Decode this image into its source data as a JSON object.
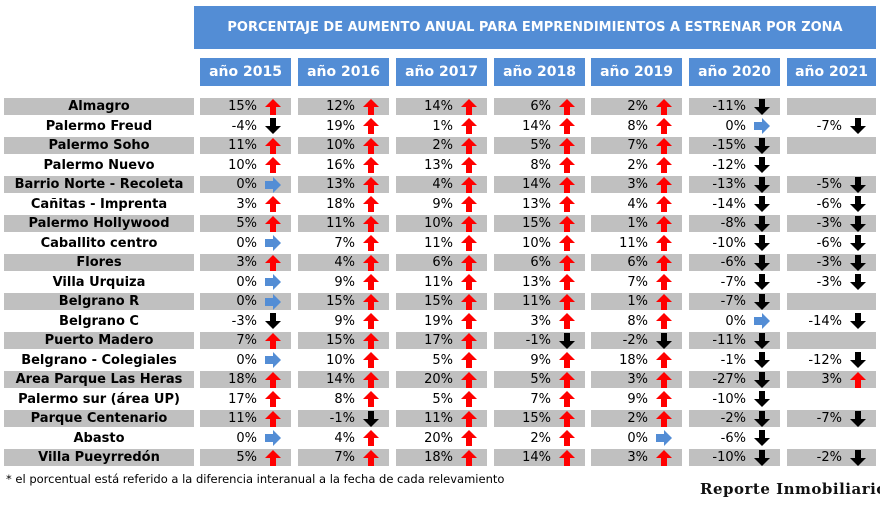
{
  "title": "PORCENTAJE DE AUMENTO ANUAL PARA EMPRENDIMIENTOS A ESTRENAR POR ZONA",
  "colors": {
    "header_bg": "#538dd5",
    "row_shade": "#c0c0c0",
    "up_arrow": "#ff0000",
    "down_arrow": "#000000",
    "flat_arrow": "#538dd5"
  },
  "years": [
    "año 2015",
    "año 2016",
    "año 2017",
    "año 2018",
    "año 2019",
    "año 2020",
    "año 2021"
  ],
  "rows": [
    {
      "zone": "Almagro",
      "values": [
        "15%",
        "12%",
        "14%",
        "6%",
        "2%",
        "-11%",
        ""
      ],
      "trends": [
        "up",
        "up",
        "up",
        "up",
        "up",
        "down",
        ""
      ]
    },
    {
      "zone": "Palermo Freud",
      "values": [
        "-4%",
        "19%",
        "1%",
        "14%",
        "8%",
        "0%",
        "-7%"
      ],
      "trends": [
        "down",
        "up",
        "up",
        "up",
        "up",
        "flat",
        "down"
      ]
    },
    {
      "zone": "Palermo Soho",
      "values": [
        "11%",
        "10%",
        "2%",
        "5%",
        "7%",
        "-15%",
        ""
      ],
      "trends": [
        "up",
        "up",
        "up",
        "up",
        "up",
        "down",
        ""
      ]
    },
    {
      "zone": "Palermo Nuevo",
      "values": [
        "10%",
        "16%",
        "13%",
        "8%",
        "2%",
        "-12%",
        ""
      ],
      "trends": [
        "up",
        "up",
        "up",
        "up",
        "up",
        "down",
        ""
      ]
    },
    {
      "zone": "Barrio Norte - Recoleta",
      "values": [
        "0%",
        "13%",
        "4%",
        "14%",
        "3%",
        "-13%",
        "-5%"
      ],
      "trends": [
        "flat",
        "up",
        "up",
        "up",
        "up",
        "down",
        "down"
      ]
    },
    {
      "zone": "Cañitas - Imprenta",
      "values": [
        "3%",
        "18%",
        "9%",
        "13%",
        "4%",
        "-14%",
        "-6%"
      ],
      "trends": [
        "up",
        "up",
        "up",
        "up",
        "up",
        "down",
        "down"
      ]
    },
    {
      "zone": "Palermo Hollywood",
      "values": [
        "5%",
        "11%",
        "10%",
        "15%",
        "1%",
        "-8%",
        "-3%"
      ],
      "trends": [
        "up",
        "up",
        "up",
        "up",
        "up",
        "down",
        "down"
      ]
    },
    {
      "zone": "Caballito centro",
      "values": [
        "0%",
        "7%",
        "11%",
        "10%",
        "11%",
        "-10%",
        "-6%"
      ],
      "trends": [
        "flat",
        "up",
        "up",
        "up",
        "up",
        "down",
        "down"
      ]
    },
    {
      "zone": "Flores",
      "values": [
        "3%",
        "4%",
        "6%",
        "6%",
        "6%",
        "-6%",
        "-3%"
      ],
      "trends": [
        "up",
        "up",
        "up",
        "up",
        "up",
        "down",
        "down"
      ]
    },
    {
      "zone": "Villa Urquiza",
      "values": [
        "0%",
        "9%",
        "11%",
        "13%",
        "7%",
        "-7%",
        "-3%"
      ],
      "trends": [
        "flat",
        "up",
        "up",
        "up",
        "up",
        "down",
        "down"
      ]
    },
    {
      "zone": "Belgrano R",
      "values": [
        "0%",
        "15%",
        "15%",
        "11%",
        "1%",
        "-7%",
        ""
      ],
      "trends": [
        "flat",
        "up",
        "up",
        "up",
        "up",
        "down",
        ""
      ]
    },
    {
      "zone": "Belgrano C",
      "values": [
        "-3%",
        "9%",
        "19%",
        "3%",
        "8%",
        "0%",
        "-14%"
      ],
      "trends": [
        "down",
        "up",
        "up",
        "up",
        "up",
        "flat",
        "down"
      ]
    },
    {
      "zone": "Puerto Madero",
      "values": [
        "7%",
        "15%",
        "17%",
        "-1%",
        "-2%",
        "-11%",
        ""
      ],
      "trends": [
        "up",
        "up",
        "up",
        "down",
        "down",
        "down",
        ""
      ]
    },
    {
      "zone": "Belgrano - Colegiales",
      "values": [
        "0%",
        "10%",
        "5%",
        "9%",
        "18%",
        "-1%",
        "-12%"
      ],
      "trends": [
        "flat",
        "up",
        "up",
        "up",
        "up",
        "down",
        "down"
      ]
    },
    {
      "zone": "Area Parque Las Heras",
      "values": [
        "18%",
        "14%",
        "20%",
        "5%",
        "3%",
        "-27%",
        "3%"
      ],
      "trends": [
        "up",
        "up",
        "up",
        "up",
        "up",
        "down",
        "up"
      ]
    },
    {
      "zone": "Palermo sur (área UP)",
      "values": [
        "17%",
        "8%",
        "5%",
        "7%",
        "9%",
        "-10%",
        ""
      ],
      "trends": [
        "up",
        "up",
        "up",
        "up",
        "up",
        "down",
        ""
      ]
    },
    {
      "zone": "Parque Centenario",
      "values": [
        "11%",
        "-1%",
        "11%",
        "15%",
        "2%",
        "-2%",
        "-7%"
      ],
      "trends": [
        "up",
        "down",
        "up",
        "up",
        "up",
        "down",
        "down"
      ]
    },
    {
      "zone": "Abasto",
      "values": [
        "0%",
        "4%",
        "20%",
        "2%",
        "0%",
        "-6%",
        ""
      ],
      "trends": [
        "flat",
        "up",
        "up",
        "up",
        "flat",
        "down",
        ""
      ]
    },
    {
      "zone": "Villa Pueyrredón",
      "values": [
        "5%",
        "7%",
        "18%",
        "14%",
        "3%",
        "-10%",
        "-2%"
      ],
      "trends": [
        "up",
        "up",
        "up",
        "up",
        "up",
        "down",
        "down"
      ]
    }
  ],
  "footnote": "* el porcentual está referido a la diferencia interanual a la fecha de cada relevamiento",
  "logo": "Reporte Inmobiliario"
}
